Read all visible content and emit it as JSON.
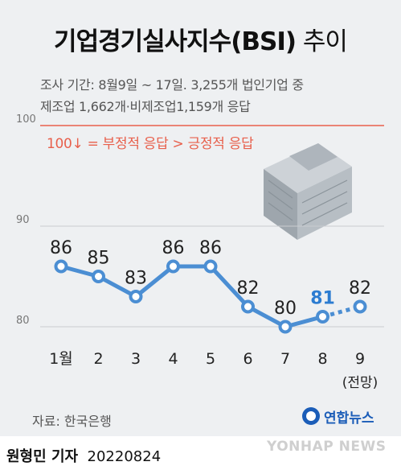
{
  "title": {
    "main": "기업경기실사지수(BSI)",
    "suffix": " 추이"
  },
  "notes": [
    "조사 기간: 8월9일 ~ 17일. 3,255개 법인기업 중",
    "제조업 1,662개·비제조업1,159개 응답"
  ],
  "legend_note": "100↓ = 부정적 응답 > 긍정적 응답",
  "chart_data": {
    "type": "line",
    "categories": [
      "1월",
      "2",
      "3",
      "4",
      "5",
      "6",
      "7",
      "8",
      "9"
    ],
    "category_sublabels": [
      "",
      "",
      "",
      "",
      "",
      "",
      "",
      "",
      "(전망)"
    ],
    "values": [
      86,
      85,
      83,
      86,
      86,
      82,
      80,
      81,
      82
    ],
    "data_labels": [
      "86",
      "85",
      "83",
      "86",
      "86",
      "82",
      "80",
      "81",
      "82"
    ],
    "yticks": [
      80,
      90,
      100
    ],
    "ytick_labels": [
      "80",
      "90",
      "100"
    ],
    "ylim": [
      80,
      100
    ],
    "grid": true,
    "highlight_index": 7,
    "forecast_index": 8,
    "colors": {
      "line": "#4b8ed3",
      "highlight_label": "#2c7cd1",
      "label": "#222222",
      "axis_label": "#222222",
      "grid": "#c9ccd0",
      "ref_line": "#e8604c"
    }
  },
  "source": "자료: 한국은행",
  "logo": {
    "text": "연합뉴스",
    "icon": "yonhap-logo-icon"
  },
  "watermark": "YONHAP NEWS",
  "reporter": {
    "name": "원형민 기자",
    "date": "20220824"
  }
}
